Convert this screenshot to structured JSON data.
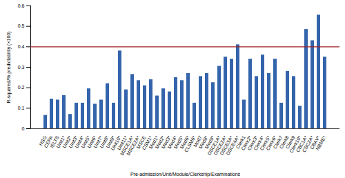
{
  "chart_data": {
    "type": "bar",
    "x_label": "Pre-admission/Unit/Module/Clerkship/Examinations",
    "y_label": "R-squared/% predictability (×100)",
    "categories": [
      "HSG",
      "CEPA",
      "IELTS",
      "Unit1*",
      "Unit2*",
      "Unit3*",
      "Unit4*",
      "Unit5*",
      "Unit6*",
      "Unit7*",
      "Unit8*",
      "Unit9*",
      "Unit10*",
      "Unit11*",
      "MSCE1A*",
      "MSCE2A*",
      "MSCE",
      "CSM1*",
      "Mod1*",
      "Mod2*",
      "Mod3*",
      "Mod4*",
      "Mod5*",
      "Mod6*",
      "CLSM6*",
      "Mod7",
      "Mod8*",
      "Mod9*",
      "OSCE1A*",
      "OSCE2A*",
      "OSCE3A*",
      "OSCE4A*",
      "Clerk1",
      "Clerk2*",
      "Clerk3*",
      "Clerk4*",
      "Clerk5*",
      "Clerk6*",
      "Clerk7",
      "Clerk8",
      "Clerk9",
      "Clerk10*",
      "CBC1A*",
      "CSC2A*",
      "CBAV*",
      "NBME*"
    ],
    "values": [
      0.065,
      0.145,
      0.14,
      0.162,
      0.07,
      0.125,
      0.125,
      0.195,
      0.12,
      0.14,
      0.22,
      0.125,
      0.38,
      0.19,
      0.265,
      0.235,
      0.21,
      0.24,
      0.16,
      0.195,
      0.18,
      0.25,
      0.235,
      0.27,
      0.125,
      0.255,
      0.27,
      0.225,
      0.305,
      0.35,
      0.34,
      0.41,
      0.14,
      0.34,
      0.255,
      0.36,
      0.27,
      0.34,
      0.125,
      0.28,
      0.255,
      0.11,
      0.485,
      0.43,
      0.555,
      0.35
    ],
    "color": "#3464ab",
    "threshold": 0.4,
    "ylim": [
      0,
      0.6
    ],
    "yticks": [
      0,
      0.1,
      0.2,
      0.3,
      0.4,
      0.5,
      0.6
    ],
    "grid": false
  }
}
